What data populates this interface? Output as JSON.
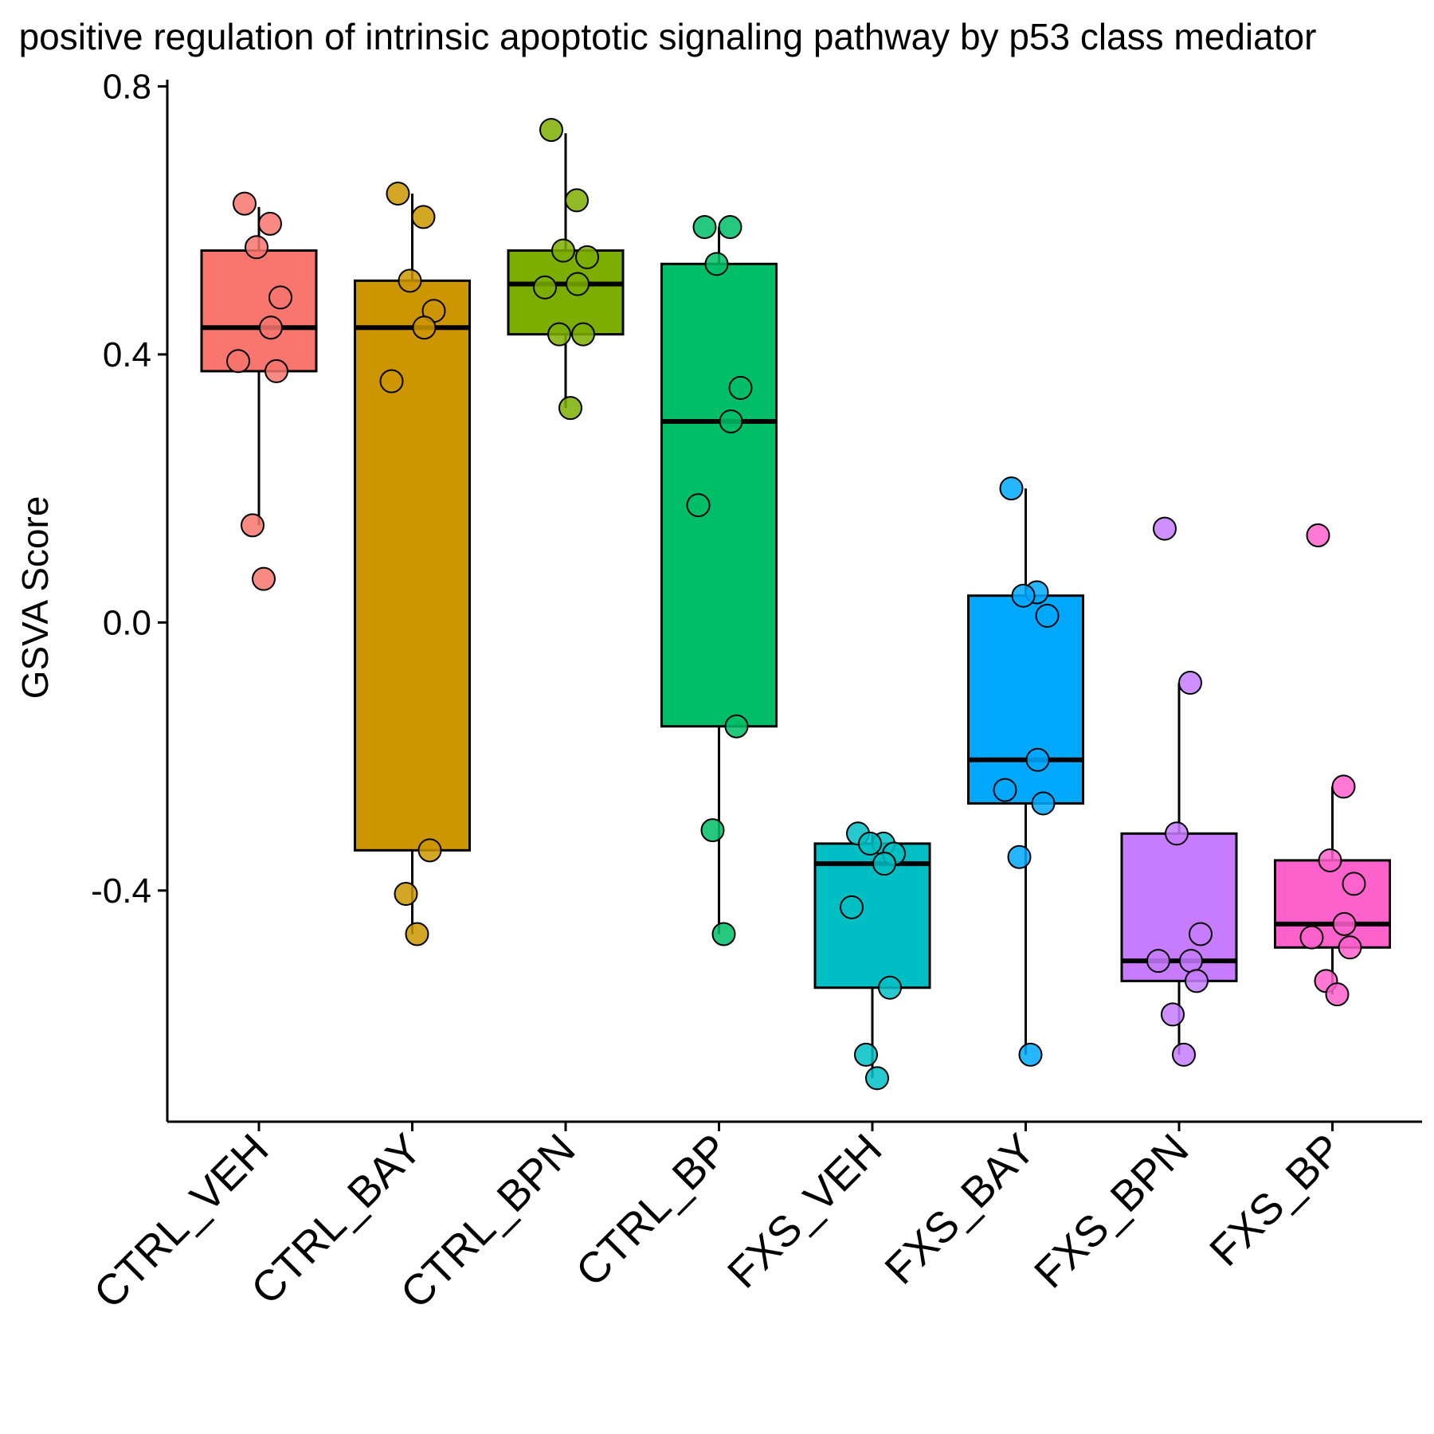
{
  "chart_data": {
    "type": "box",
    "title": "positive regulation of intrinsic apoptotic signaling pathway by p53 class mediator",
    "xlabel": "",
    "ylabel": "GSVA Score",
    "ylim": [
      -0.745,
      0.81
    ],
    "y_ticks": [
      -0.4,
      0.0,
      0.4,
      0.8
    ],
    "y_tick_labels": [
      "-0.4",
      "0.0",
      "0.4",
      "0.8"
    ],
    "grid": false,
    "legend": "none",
    "categories": [
      "CTRL_VEH",
      "CTRL_BAY",
      "CTRL_BPN",
      "CTRL_BP",
      "FXS_VEH",
      "FXS_BAY",
      "FXS_BPN",
      "FXS_BP"
    ],
    "colors": [
      "#F8766D",
      "#CD9600",
      "#7CAE00",
      "#00BE67",
      "#00BFC4",
      "#00A9FF",
      "#C77CFF",
      "#FF61CC"
    ],
    "boxes": [
      {
        "group": "CTRL_VEH",
        "whisker_low": 0.145,
        "q1": 0.375,
        "median": 0.44,
        "q3": 0.555,
        "whisker_high": 0.62,
        "points": [
          0.625,
          0.595,
          0.56,
          0.485,
          0.44,
          0.39,
          0.375,
          0.145,
          0.065
        ]
      },
      {
        "group": "CTRL_BAY",
        "whisker_low": -0.465,
        "q1": -0.34,
        "median": 0.44,
        "q3": 0.51,
        "whisker_high": 0.64,
        "points": [
          0.64,
          0.605,
          0.51,
          0.465,
          0.44,
          0.36,
          -0.34,
          -0.405,
          -0.465
        ]
      },
      {
        "group": "CTRL_BPN",
        "whisker_low": 0.32,
        "q1": 0.43,
        "median": 0.505,
        "q3": 0.555,
        "whisker_high": 0.73,
        "points": [
          0.735,
          0.63,
          0.555,
          0.545,
          0.505,
          0.5,
          0.43,
          0.43,
          0.32
        ]
      },
      {
        "group": "CTRL_BP",
        "whisker_low": -0.465,
        "q1": -0.155,
        "median": 0.3,
        "q3": 0.535,
        "whisker_high": 0.59,
        "points": [
          0.59,
          0.59,
          0.535,
          0.35,
          0.3,
          0.175,
          -0.155,
          -0.31,
          -0.465
        ]
      },
      {
        "group": "FXS_VEH",
        "whisker_low": -0.68,
        "q1": -0.545,
        "median": -0.36,
        "q3": -0.33,
        "whisker_high": -0.315,
        "points": [
          -0.315,
          -0.33,
          -0.33,
          -0.345,
          -0.36,
          -0.425,
          -0.545,
          -0.645,
          -0.68
        ]
      },
      {
        "group": "FXS_BAY",
        "whisker_low": -0.645,
        "q1": -0.27,
        "median": -0.205,
        "q3": 0.04,
        "whisker_high": 0.2,
        "points": [
          0.2,
          0.045,
          0.04,
          0.01,
          -0.205,
          -0.25,
          -0.27,
          -0.35,
          -0.645
        ]
      },
      {
        "group": "FXS_BPN",
        "whisker_low": -0.645,
        "q1": -0.535,
        "median": -0.505,
        "q3": -0.315,
        "whisker_high": -0.09,
        "points": [
          0.14,
          -0.09,
          -0.315,
          -0.465,
          -0.505,
          -0.505,
          -0.535,
          -0.585,
          -0.645
        ]
      },
      {
        "group": "FXS_BP",
        "whisker_low": -0.555,
        "q1": -0.485,
        "median": -0.45,
        "q3": -0.355,
        "whisker_high": -0.245,
        "points": [
          0.13,
          -0.245,
          -0.355,
          -0.39,
          -0.45,
          -0.47,
          -0.485,
          -0.535,
          -0.555
        ]
      }
    ]
  }
}
